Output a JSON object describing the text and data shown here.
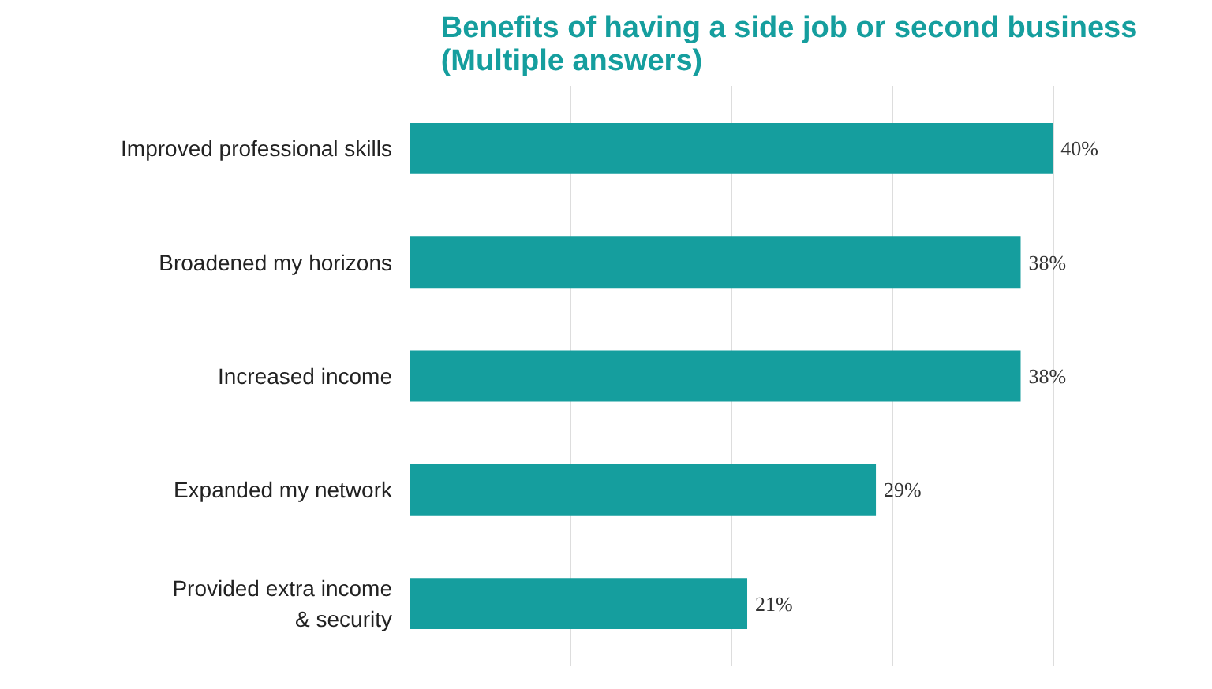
{
  "chart_data": {
    "type": "bar",
    "orientation": "horizontal",
    "title": "Benefits of having a side job or second business\n(Multiple answers)",
    "categories": [
      "Improved professional skills",
      "Broadened my horizons",
      "Increased income",
      "Expanded my network",
      "Provided extra income\n& security"
    ],
    "values": [
      40,
      38,
      38,
      29,
      21
    ],
    "color": "#159e9e",
    "data_labels": true,
    "value_labels": [
      "40%",
      "38%",
      "38%",
      "29%",
      "21%"
    ],
    "grid": "x",
    "tick_labels": "y"
  }
}
